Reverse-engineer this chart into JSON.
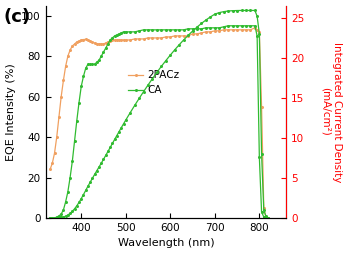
{
  "panel_label": "(c)",
  "xlabel": "Wavelength (nm)",
  "ylabel_left": "EQE Intensity (%)",
  "ylabel_right": "Integrated Current Density\n(mA/cm²)",
  "xlim": [
    320,
    860
  ],
  "ylim_left": [
    0,
    105
  ],
  "ylim_right": [
    0,
    26.5
  ],
  "xticks": [
    400,
    500,
    600,
    700,
    800
  ],
  "yticks_left": [
    0,
    20,
    40,
    60,
    80,
    100
  ],
  "yticks_right": [
    0,
    5,
    10,
    15,
    20,
    25
  ],
  "legend_entries": [
    "2PACz",
    "CA"
  ],
  "line_color_2PACz": "#F0A060",
  "line_color_CA": "#30BB30",
  "background_color": "#ffffff",
  "2PACz_eqe_x": [
    330,
    335,
    340,
    345,
    350,
    355,
    360,
    365,
    370,
    375,
    380,
    385,
    390,
    395,
    400,
    405,
    410,
    415,
    420,
    425,
    430,
    435,
    440,
    445,
    450,
    455,
    460,
    465,
    470,
    475,
    480,
    485,
    490,
    495,
    500,
    510,
    520,
    530,
    540,
    550,
    560,
    570,
    580,
    590,
    600,
    610,
    620,
    630,
    640,
    650,
    660,
    670,
    680,
    690,
    700,
    710,
    720,
    730,
    740,
    750,
    760,
    770,
    780,
    790,
    795,
    800,
    805,
    810,
    815,
    820
  ],
  "2PACz_eqe_y": [
    24,
    27,
    32,
    40,
    50,
    60,
    68,
    75,
    80,
    83,
    85,
    86,
    87,
    87.5,
    88,
    88.2,
    88.3,
    88,
    87.5,
    87,
    86.5,
    86,
    86,
    86,
    86,
    86.5,
    87,
    87.5,
    88,
    88,
    88,
    88,
    88,
    88,
    88,
    88,
    88.5,
    88.5,
    88.5,
    89,
    89,
    89,
    89,
    89.5,
    89.5,
    90,
    90,
    90,
    90,
    91,
    91,
    91.5,
    92,
    92,
    92.5,
    92.5,
    93,
    93,
    93,
    93,
    93,
    93,
    93,
    94,
    93,
    92,
    55,
    5,
    0,
    0
  ],
  "CA_eqe_x": [
    330,
    335,
    340,
    345,
    350,
    355,
    360,
    365,
    370,
    375,
    380,
    385,
    390,
    395,
    400,
    405,
    410,
    415,
    420,
    425,
    430,
    435,
    440,
    445,
    450,
    455,
    460,
    465,
    470,
    475,
    480,
    485,
    490,
    495,
    500,
    510,
    520,
    530,
    540,
    550,
    560,
    570,
    580,
    590,
    600,
    610,
    620,
    630,
    640,
    650,
    660,
    670,
    680,
    690,
    700,
    710,
    720,
    730,
    740,
    750,
    760,
    770,
    780,
    790,
    795,
    800,
    805,
    810,
    815,
    820
  ],
  "CA_eqe_y": [
    0,
    0,
    0,
    0.5,
    1,
    2,
    4,
    8,
    13,
    20,
    28,
    38,
    48,
    57,
    65,
    70,
    74,
    76,
    76,
    76,
    76,
    77,
    78,
    80,
    82,
    84,
    86,
    88,
    89,
    90,
    90.5,
    91,
    91.5,
    92,
    92,
    92,
    92,
    92.5,
    93,
    93,
    93,
    93,
    93,
    93,
    93,
    93,
    93,
    93,
    93.5,
    93.5,
    93.5,
    93.5,
    94,
    94,
    94,
    94,
    94.5,
    95,
    95,
    95,
    95,
    95,
    95,
    95,
    90,
    30,
    3,
    0.5,
    0,
    0
  ],
  "CA_jint_x": [
    330,
    335,
    340,
    345,
    350,
    355,
    360,
    365,
    370,
    375,
    380,
    385,
    390,
    395,
    400,
    405,
    410,
    415,
    420,
    425,
    430,
    435,
    440,
    445,
    450,
    455,
    460,
    465,
    470,
    475,
    480,
    485,
    490,
    495,
    500,
    510,
    520,
    530,
    540,
    550,
    560,
    570,
    580,
    590,
    600,
    610,
    620,
    630,
    640,
    650,
    660,
    670,
    680,
    690,
    700,
    710,
    720,
    730,
    740,
    750,
    760,
    770,
    780,
    790,
    795,
    800,
    805,
    810,
    815,
    820
  ],
  "CA_jint_y": [
    0,
    0,
    0,
    0.01,
    0.03,
    0.07,
    0.13,
    0.23,
    0.38,
    0.57,
    0.83,
    1.15,
    1.52,
    1.95,
    2.42,
    2.92,
    3.44,
    3.96,
    4.46,
    4.95,
    5.43,
    5.9,
    6.37,
    6.84,
    7.32,
    7.81,
    8.3,
    8.8,
    9.3,
    9.8,
    10.29,
    10.78,
    11.27,
    11.75,
    12.22,
    13.14,
    14.04,
    14.91,
    15.76,
    16.59,
    17.39,
    18.17,
    18.92,
    19.63,
    20.32,
    20.98,
    21.61,
    22.21,
    22.78,
    23.31,
    23.81,
    24.27,
    24.7,
    25.08,
    25.43,
    25.62,
    25.74,
    25.82,
    25.86,
    25.88,
    25.89,
    25.89,
    25.89,
    25.89,
    25.17,
    23.0,
    8.0,
    1.0,
    0.2,
    0.0
  ]
}
